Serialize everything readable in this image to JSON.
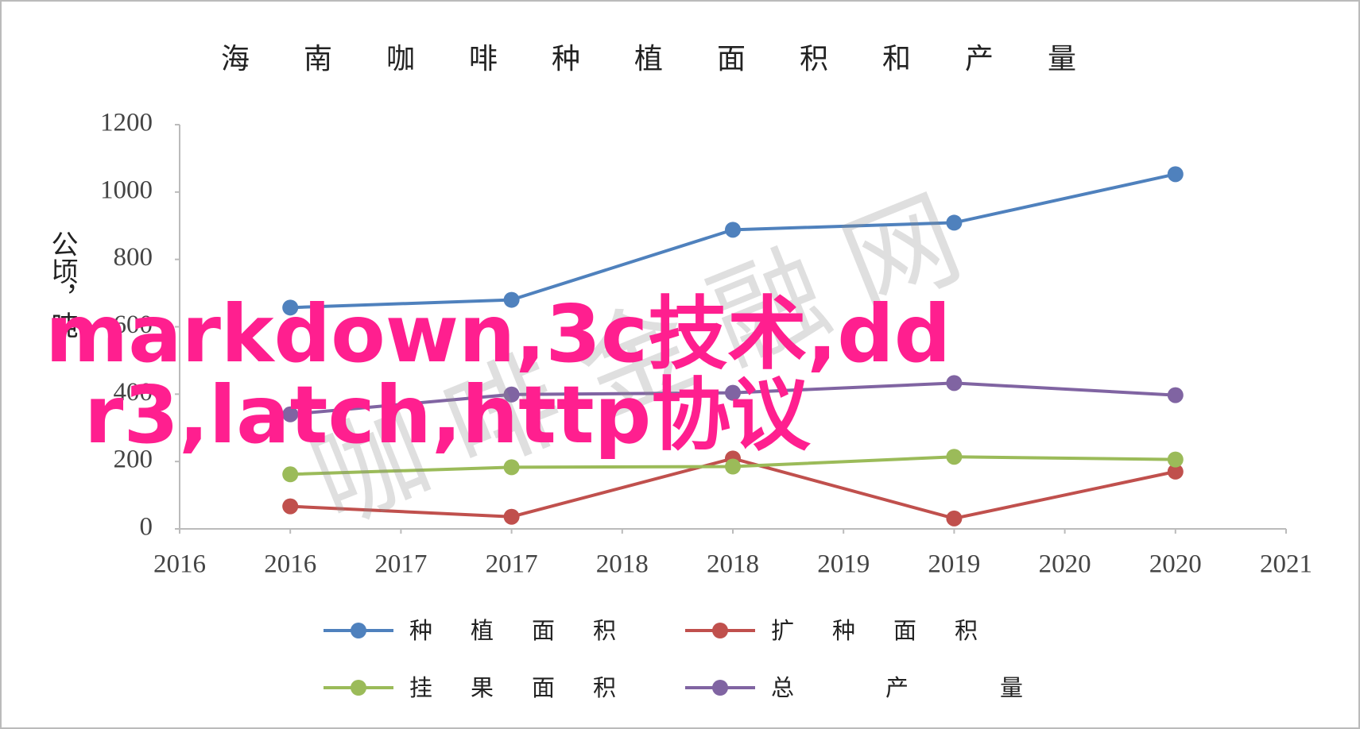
{
  "chart_data": {
    "type": "line",
    "title": "海南咖啡种植面积和产量",
    "y_label": "公顷，吨",
    "x": [
      2016,
      2017,
      2018,
      2019,
      2020
    ],
    "xlim": [
      2015.5,
      2020.5
    ],
    "xticks": [
      {
        "value": 2015.5,
        "label": "2016"
      },
      2016,
      {
        "value": 2016.5,
        "label": "2017"
      },
      2017,
      {
        "value": 2017.5,
        "label": "2018"
      },
      2018,
      {
        "value": 2018.5,
        "label": "2019"
      },
      2019,
      {
        "value": 2019.5,
        "label": "2020"
      },
      2020,
      {
        "value": 2020.5,
        "label": "2021"
      }
    ],
    "ylim": [
      0,
      1200
    ],
    "yticks": [
      0,
      200,
      400,
      600,
      800,
      1000,
      1200
    ],
    "series": [
      {
        "name": "种植面积",
        "color": "#4f81bd",
        "values": [
          657,
          680,
          888,
          909,
          1053
        ]
      },
      {
        "name": "扩种面积",
        "color": "#c0504d",
        "values": [
          67,
          36,
          209,
          31,
          170
        ]
      },
      {
        "name": "挂果面积",
        "color": "#9bbb59",
        "values": [
          162,
          183,
          185,
          214,
          206
        ]
      },
      {
        "name": "总产量",
        "color": "#8064a2",
        "values": [
          340,
          399,
          404,
          433,
          397
        ]
      }
    ],
    "annotations": [
      "markdown,3c技术,dd",
      "r3,latch,http协议",
      "咖啡金融网"
    ]
  }
}
